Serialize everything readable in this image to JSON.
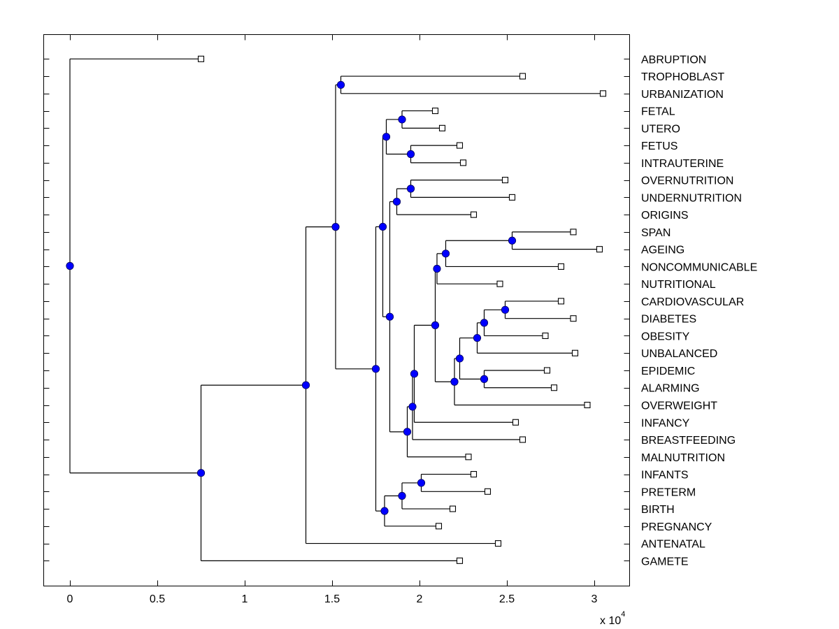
{
  "chart_data": {
    "type": "dendrogram",
    "title": "",
    "xlabel": "",
    "ylabel": "",
    "x_multiplier": "x 10",
    "x_multiplier_exponent": "4",
    "xlim": [
      -0.15,
      3.2
    ],
    "xticks": [
      0,
      0.5,
      1,
      1.5,
      2,
      2.5,
      3
    ],
    "xtick_labels": [
      "0",
      "0.5",
      "1",
      "1.5",
      "2",
      "2.5",
      "3"
    ],
    "grid": false,
    "colors": {
      "internal_node": "#0000ff",
      "leaf_fill": "#ffffff",
      "line": "#000000"
    },
    "leaves": [
      {
        "label": "ABRUPTION",
        "x": 0.75
      },
      {
        "label": "TROPHOBLAST",
        "x": 2.59
      },
      {
        "label": "URBANIZATION",
        "x": 3.05
      },
      {
        "label": "FETAL",
        "x": 2.09
      },
      {
        "label": "UTERO",
        "x": 2.13
      },
      {
        "label": "FETUS",
        "x": 2.23
      },
      {
        "label": "INTRAUTERINE",
        "x": 2.25
      },
      {
        "label": "OVERNUTRITION",
        "x": 2.49
      },
      {
        "label": "UNDERNUTRITION",
        "x": 2.53
      },
      {
        "label": "ORIGINS",
        "x": 2.31
      },
      {
        "label": "SPAN",
        "x": 2.88
      },
      {
        "label": "AGEING",
        "x": 3.03
      },
      {
        "label": "NONCOMMUNICABLE",
        "x": 2.81
      },
      {
        "label": "NUTRITIONAL",
        "x": 2.46
      },
      {
        "label": "CARDIOVASCULAR",
        "x": 2.81
      },
      {
        "label": "DIABETES",
        "x": 2.88
      },
      {
        "label": "OBESITY",
        "x": 2.72
      },
      {
        "label": "UNBALANCED",
        "x": 2.89
      },
      {
        "label": "EPIDEMIC",
        "x": 2.73
      },
      {
        "label": "ALARMING",
        "x": 2.77
      },
      {
        "label": "OVERWEIGHT",
        "x": 2.96
      },
      {
        "label": "INFANCY",
        "x": 2.55
      },
      {
        "label": "BREASTFEEDING",
        "x": 2.59
      },
      {
        "label": "MALNUTRITION",
        "x": 2.28
      },
      {
        "label": "INFANTS",
        "x": 2.31
      },
      {
        "label": "PRETERM",
        "x": 2.39
      },
      {
        "label": "BIRTH",
        "x": 2.19
      },
      {
        "label": "PREGNANCY",
        "x": 2.11
      },
      {
        "label": "ANTENATAL",
        "x": 2.45
      },
      {
        "label": "GAMETE",
        "x": 2.23
      }
    ],
    "tree": {
      "x": 0,
      "children": [
        {
          "leaf": "ABRUPTION"
        },
        {
          "x": 0.75,
          "children": [
            {
              "x": 1.35,
              "children": [
                {
                  "x": 1.52,
                  "children": [
                    {
                      "x": 1.55,
                      "children": [
                        {
                          "leaf": "TROPHOBLAST"
                        },
                        {
                          "leaf": "URBANIZATION"
                        }
                      ]
                    },
                    {
                      "x": 1.75,
                      "children": [
                        {
                          "x": 1.79,
                          "children": [
                            {
                              "x": 1.81,
                              "children": [
                                {
                                  "x": 1.9,
                                  "children": [
                                    {
                                      "leaf": "FETAL"
                                    },
                                    {
                                      "leaf": "UTERO"
                                    }
                                  ]
                                },
                                {
                                  "x": 1.95,
                                  "children": [
                                    {
                                      "leaf": "FETUS"
                                    },
                                    {
                                      "leaf": "INTRAUTERINE"
                                    }
                                  ]
                                }
                              ]
                            },
                            {
                              "x": 1.83,
                              "children": [
                                {
                                  "x": 1.87,
                                  "children": [
                                    {
                                      "x": 1.95,
                                      "children": [
                                        {
                                          "leaf": "OVERNUTRITION"
                                        },
                                        {
                                          "leaf": "UNDERNUTRITION"
                                        }
                                      ]
                                    },
                                    {
                                      "leaf": "ORIGINS"
                                    }
                                  ]
                                },
                                {
                                  "x": 1.93,
                                  "children": [
                                    {
                                      "x": 1.96,
                                      "children": [
                                        {
                                          "x": 1.97,
                                          "children": [
                                            {
                                              "x": 2.09,
                                              "children": [
                                                {
                                                  "x": 2.1,
                                                  "children": [
                                                    {
                                                      "x": 2.15,
                                                      "children": [
                                                        {
                                                          "x": 2.53,
                                                          "children": [
                                                            {
                                                              "leaf": "SPAN"
                                                            },
                                                            {
                                                              "leaf": "AGEING"
                                                            }
                                                          ]
                                                        },
                                                        {
                                                          "leaf": "NONCOMMUNICABLE"
                                                        }
                                                      ]
                                                    },
                                                    {
                                                      "leaf": "NUTRITIONAL"
                                                    }
                                                  ]
                                                },
                                                {
                                                  "x": 2.2,
                                                  "children": [
                                                    {
                                                      "x": 2.23,
                                                      "children": [
                                                        {
                                                          "x": 2.33,
                                                          "children": [
                                                            {
                                                              "x": 2.37,
                                                              "children": [
                                                                {
                                                                  "x": 2.49,
                                                                  "children": [
                                                                    {
                                                                      "leaf": "CARDIOVASCULAR"
                                                                    },
                                                                    {
                                                                      "leaf": "DIABETES"
                                                                    }
                                                                  ]
                                                                },
                                                                {
                                                                  "leaf": "OBESITY"
                                                                }
                                                              ]
                                                            },
                                                            {
                                                              "leaf": "UNBALANCED"
                                                            }
                                                          ]
                                                        },
                                                        {
                                                          "x": 2.37,
                                                          "children": [
                                                            {
                                                              "leaf": "EPIDEMIC"
                                                            },
                                                            {
                                                              "leaf": "ALARMING"
                                                            }
                                                          ]
                                                        }
                                                      ]
                                                    },
                                                    {
                                                      "leaf": "OVERWEIGHT"
                                                    }
                                                  ]
                                                }
                                              ]
                                            },
                                            {
                                              "leaf": "INFANCY"
                                            }
                                          ]
                                        },
                                        {
                                          "leaf": "BREASTFEEDING"
                                        }
                                      ]
                                    },
                                    {
                                      "leaf": "MALNUTRITION"
                                    }
                                  ]
                                }
                              ]
                            }
                          ]
                        },
                        {
                          "x": 1.8,
                          "children": [
                            {
                              "x": 1.9,
                              "children": [
                                {
                                  "x": 2.01,
                                  "children": [
                                    {
                                      "leaf": "INFANTS"
                                    },
                                    {
                                      "leaf": "PRETERM"
                                    }
                                  ]
                                },
                                {
                                  "leaf": "BIRTH"
                                }
                              ]
                            },
                            {
                              "leaf": "PREGNANCY"
                            }
                          ]
                        }
                      ]
                    }
                  ]
                },
                {
                  "leaf": "ANTENATAL"
                }
              ]
            },
            {
              "leaf": "GAMETE"
            }
          ]
        }
      ]
    }
  }
}
